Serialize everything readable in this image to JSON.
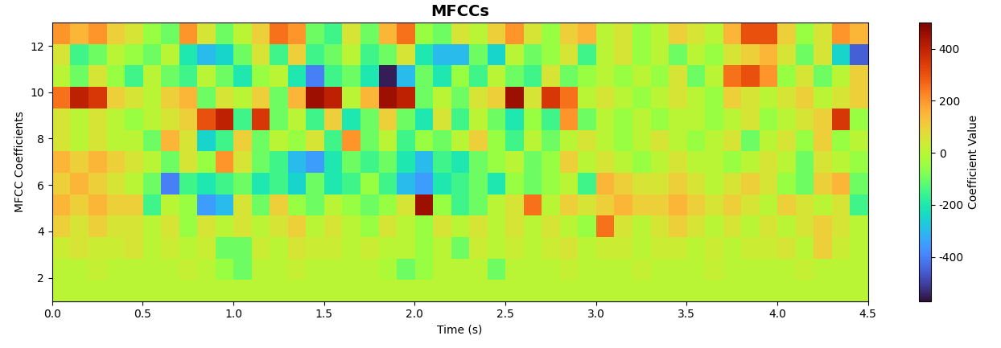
{
  "chart_data": {
    "type": "heatmap",
    "title": "MFCCs",
    "x_label": "Time (s)",
    "y_label": "MFCC Coefficients",
    "xlim": [
      0.0,
      4.5
    ],
    "ylim": [
      1,
      13
    ],
    "xticks": [
      0.0,
      0.5,
      1.0,
      1.5,
      2.0,
      2.5,
      3.0,
      3.5,
      4.0,
      4.5
    ],
    "yticks": [
      2,
      4,
      6,
      8,
      10,
      12
    ],
    "colorbar": {
      "label": "Coefficient Value",
      "lim": [
        -570,
        500
      ],
      "ticks": [
        -400,
        -200,
        0,
        200,
        400
      ]
    },
    "cells": [
      [
        0,
        0,
        0,
        0,
        0,
        0,
        0,
        0,
        0,
        0,
        0,
        0,
        0,
        0,
        0,
        0,
        0,
        0,
        0,
        0,
        0,
        0,
        0,
        0,
        0,
        0,
        0,
        0,
        0,
        0,
        0,
        0,
        0,
        0,
        0,
        0,
        0,
        0,
        0,
        0,
        0,
        0,
        0,
        0,
        0
      ],
      [
        0,
        0,
        20,
        0,
        0,
        0,
        0,
        20,
        0,
        -50,
        -100,
        0,
        0,
        20,
        0,
        0,
        0,
        0,
        -20,
        -100,
        -50,
        0,
        0,
        0,
        -100,
        0,
        0,
        0,
        20,
        0,
        0,
        0,
        20,
        0,
        0,
        0,
        20,
        0,
        0,
        0,
        0,
        20,
        0,
        0,
        0
      ],
      [
        30,
        50,
        30,
        30,
        50,
        0,
        30,
        0,
        30,
        -100,
        -100,
        30,
        0,
        50,
        30,
        30,
        0,
        30,
        0,
        0,
        -50,
        0,
        -100,
        30,
        0,
        30,
        0,
        30,
        50,
        0,
        30,
        30,
        0,
        30,
        30,
        0,
        30,
        0,
        30,
        30,
        50,
        0,
        100,
        30,
        0
      ],
      [
        100,
        50,
        100,
        50,
        50,
        0,
        50,
        -50,
        50,
        0,
        50,
        0,
        50,
        100,
        0,
        50,
        0,
        -50,
        50,
        0,
        -50,
        50,
        0,
        50,
        0,
        50,
        0,
        50,
        0,
        -50,
        250,
        50,
        0,
        50,
        100,
        50,
        0,
        50,
        0,
        50,
        0,
        50,
        100,
        50,
        0
      ],
      [
        150,
        100,
        150,
        100,
        100,
        -150,
        0,
        -50,
        -350,
        -300,
        50,
        -100,
        100,
        -50,
        -100,
        0,
        -50,
        -100,
        -50,
        50,
        450,
        -50,
        -150,
        -100,
        0,
        50,
        250,
        0,
        100,
        50,
        100,
        150,
        100,
        100,
        150,
        100,
        50,
        100,
        50,
        0,
        100,
        50,
        0,
        50,
        -150
      ],
      [
        100,
        150,
        100,
        50,
        0,
        -100,
        -400,
        -150,
        -200,
        -150,
        -100,
        -200,
        -150,
        -250,
        -100,
        -200,
        -150,
        -50,
        -150,
        -300,
        -350,
        -200,
        -150,
        -100,
        -200,
        -50,
        -100,
        -50,
        0,
        -150,
        150,
        100,
        50,
        50,
        100,
        50,
        0,
        50,
        100,
        50,
        -50,
        -100,
        100,
        150,
        -100
      ],
      [
        150,
        100,
        150,
        100,
        50,
        0,
        -100,
        50,
        -50,
        200,
        50,
        -100,
        -150,
        -300,
        -350,
        -200,
        -100,
        -150,
        -100,
        -200,
        -300,
        -150,
        -200,
        -100,
        -50,
        0,
        -100,
        -50,
        100,
        0,
        50,
        0,
        -50,
        0,
        50,
        0,
        0,
        -50,
        0,
        50,
        0,
        -100,
        50,
        0,
        -50
      ],
      [
        50,
        0,
        50,
        0,
        0,
        -100,
        150,
        50,
        -250,
        -150,
        100,
        -100,
        0,
        -50,
        50,
        -150,
        200,
        -100,
        0,
        -150,
        -50,
        -100,
        0,
        100,
        -50,
        -150,
        0,
        -100,
        0,
        50,
        0,
        -50,
        0,
        50,
        0,
        -50,
        0,
        50,
        -100,
        0,
        50,
        -50,
        100,
        -50,
        0
      ],
      [
        50,
        0,
        50,
        0,
        -50,
        0,
        50,
        100,
        300,
        400,
        -150,
        350,
        -100,
        0,
        -150,
        100,
        -200,
        -100,
        100,
        -100,
        -200,
        50,
        -150,
        0,
        -100,
        -200,
        -50,
        -150,
        200,
        -100,
        0,
        -50,
        0,
        -50,
        0,
        0,
        -50,
        0,
        50,
        -50,
        0,
        50,
        100,
        350,
        -50
      ],
      [
        250,
        400,
        350,
        100,
        50,
        0,
        100,
        150,
        -100,
        50,
        0,
        100,
        -100,
        150,
        450,
        400,
        0,
        150,
        450,
        400,
        -100,
        0,
        -100,
        50,
        100,
        450,
        50,
        350,
        250,
        0,
        50,
        0,
        -50,
        0,
        50,
        0,
        -50,
        100,
        50,
        0,
        50,
        100,
        0,
        50,
        100
      ],
      [
        0,
        -100,
        50,
        -50,
        -150,
        0,
        -100,
        -150,
        0,
        -100,
        -200,
        -50,
        0,
        -200,
        -400,
        -150,
        -100,
        -200,
        -550,
        -300,
        -100,
        -200,
        -50,
        -150,
        0,
        -100,
        -150,
        50,
        -100,
        -50,
        0,
        -50,
        0,
        -50,
        50,
        -100,
        0,
        250,
        300,
        200,
        -50,
        50,
        -100,
        0,
        100
      ],
      [
        50,
        -150,
        -100,
        0,
        -50,
        -100,
        0,
        -200,
        -300,
        -250,
        -100,
        50,
        -150,
        100,
        -150,
        -100,
        0,
        -150,
        -100,
        50,
        -200,
        -300,
        -300,
        -100,
        -250,
        0,
        -100,
        -50,
        50,
        -150,
        0,
        50,
        -50,
        0,
        -100,
        0,
        -50,
        50,
        100,
        150,
        50,
        -100,
        50,
        -250,
        -450
      ],
      [
        200,
        150,
        200,
        100,
        50,
        -50,
        -100,
        200,
        50,
        -100,
        0,
        100,
        250,
        200,
        -100,
        -150,
        50,
        -100,
        150,
        250,
        -50,
        -100,
        50,
        0,
        100,
        200,
        50,
        -50,
        100,
        150,
        0,
        50,
        -50,
        0,
        100,
        50,
        0,
        150,
        300,
        300,
        100,
        -50,
        50,
        200,
        150
      ]
    ]
  }
}
